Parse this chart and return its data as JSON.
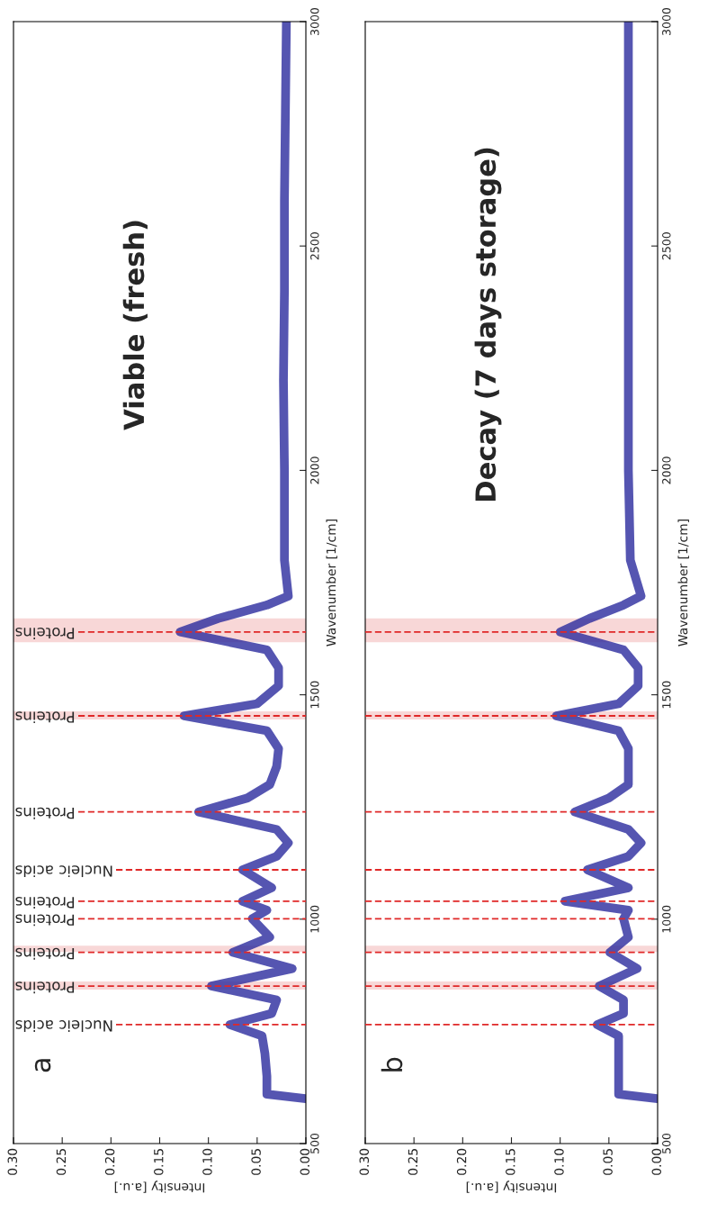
{
  "chart_data": [
    {
      "type": "line",
      "title": "Viable (fresh)",
      "annotations": [
        "a"
      ],
      "xlabel": "Intensity [a.u.]",
      "ylabel": "Wavenumber [1/cm]",
      "xlim": [
        0.3,
        0
      ],
      "xticks": [
        {
          "value": 0.3,
          "label": "0.30"
        },
        {
          "value": 0.25,
          "label": "0.25"
        },
        {
          "value": 0.2,
          "label": "0.20"
        },
        {
          "value": 0.15,
          "label": "0.15"
        },
        {
          "value": 0.1,
          "label": "0.10"
        },
        {
          "value": 0.05,
          "label": "0.05"
        },
        {
          "value": 0,
          "label": "0.00"
        }
      ],
      "ylim": [
        500,
        3000
      ],
      "yticks": [
        500,
        1000,
        1500,
        2000,
        2500,
        3000
      ],
      "series": [
        {
          "color": "#2a2a9e",
          "x": [
            0,
            0.04,
            0.04,
            0.042,
            0.045,
            0.078,
            0.035,
            0.03,
            0.097,
            0.014,
            0.075,
            0.037,
            0.055,
            0.04,
            0.065,
            0.035,
            0.065,
            0.03,
            0.018,
            0.03,
            0.11,
            0.06,
            0.037,
            0.03,
            0.028,
            0.04,
            0.125,
            0.05,
            0.028,
            0.028,
            0.04,
            0.129,
            0.09,
            0.04,
            0.018,
            0.022,
            0.022,
            0.023,
            0.022,
            0.022,
            0.021,
            0.02
          ],
          "values": [
            600,
            610,
            650,
            700,
            740,
            765,
            790,
            820,
            851,
            890,
            926,
            960,
            1001,
            1020,
            1040,
            1070,
            1110,
            1140,
            1170,
            1200,
            1239,
            1270,
            1300,
            1340,
            1380,
            1420,
            1453,
            1480,
            1520,
            1560,
            1600,
            1640,
            1670,
            1700,
            1720,
            1800,
            2000,
            2200,
            2400,
            2600,
            2800,
            3000
          ]
        }
      ],
      "ref_lines": [
        {
          "axis": "y",
          "value": 765,
          "label": "Nucleic acids",
          "color": "#e02828",
          "line_style": "dashed"
        },
        {
          "axis": "y",
          "value": 851,
          "label": "Proteins",
          "color": "#e02828",
          "line_style": "dashed"
        },
        {
          "axis": "y",
          "value": 926,
          "label": "Proteins",
          "color": "#e02828",
          "line_style": "dashed"
        },
        {
          "axis": "y",
          "value": 1001,
          "label": "Proteins",
          "color": "#e02828",
          "line_style": "dashed"
        },
        {
          "axis": "y",
          "value": 1040,
          "label": "Proteins",
          "color": "#e02828",
          "line_style": "dashed"
        },
        {
          "axis": "y",
          "value": 1110,
          "label": "Nucleic acids",
          "color": "#e02828",
          "line_style": "dashed"
        },
        {
          "axis": "y",
          "value": 1239,
          "label": "Proteins",
          "color": "#e02828",
          "line_style": "dashed"
        },
        {
          "axis": "y",
          "value": 1453,
          "label": "Proteins",
          "color": "#e02828",
          "line_style": "dashed"
        },
        {
          "axis": "y",
          "value": 1640,
          "label": "Proteins",
          "color": "#e02828",
          "line_style": "dashed"
        }
      ],
      "bands": [
        {
          "axis": "y",
          "from": 843,
          "to": 861,
          "color": "#f5c6c6"
        },
        {
          "axis": "y",
          "from": 927,
          "to": 941,
          "color": "#f5c6c6"
        },
        {
          "axis": "y",
          "from": 1445,
          "to": 1463,
          "color": "#f5c6c6"
        },
        {
          "axis": "y",
          "from": 1617,
          "to": 1670,
          "color": "#f5c6c6"
        }
      ]
    },
    {
      "type": "line",
      "title": "Decay (7 days storage)",
      "annotations": [
        "b"
      ],
      "xlabel": "Intensity [a.u.]",
      "ylabel": "Wavenumber [1/cm]",
      "xlim": [
        0.3,
        0
      ],
      "xticks": [
        {
          "value": 0.3,
          "label": "0.30"
        },
        {
          "value": 0.25,
          "label": "0.25"
        },
        {
          "value": 0.2,
          "label": "0.20"
        },
        {
          "value": 0.15,
          "label": "0.15"
        },
        {
          "value": 0.1,
          "label": "0.10"
        },
        {
          "value": 0.05,
          "label": "0.05"
        },
        {
          "value": 0,
          "label": "0.00"
        }
      ],
      "ylim": [
        500,
        3000
      ],
      "yticks": [
        500,
        1000,
        1500,
        2000,
        2500,
        3000
      ],
      "series": [
        {
          "color": "#2a2a9e",
          "x": [
            0,
            0.04,
            0.04,
            0.04,
            0.04,
            0.062,
            0.035,
            0.035,
            0.06,
            0.021,
            0.049,
            0.03,
            0.035,
            0.03,
            0.095,
            0.03,
            0.072,
            0.03,
            0.017,
            0.03,
            0.085,
            0.05,
            0.03,
            0.03,
            0.03,
            0.04,
            0.104,
            0.04,
            0.02,
            0.02,
            0.035,
            0.1,
            0.07,
            0.035,
            0.017,
            0.028,
            0.03,
            0.03,
            0.03,
            0.03,
            0.03,
            0.03
          ],
          "values": [
            600,
            610,
            650,
            700,
            740,
            765,
            790,
            820,
            851,
            890,
            926,
            960,
            1001,
            1020,
            1040,
            1070,
            1110,
            1140,
            1170,
            1200,
            1239,
            1270,
            1300,
            1340,
            1380,
            1420,
            1453,
            1480,
            1520,
            1560,
            1600,
            1640,
            1670,
            1700,
            1720,
            1800,
            2000,
            2200,
            2400,
            2600,
            2800,
            3000
          ]
        }
      ],
      "ref_lines": [
        {
          "axis": "y",
          "value": 765,
          "color": "#e02828",
          "line_style": "dashed"
        },
        {
          "axis": "y",
          "value": 851,
          "color": "#e02828",
          "line_style": "dashed"
        },
        {
          "axis": "y",
          "value": 926,
          "color": "#e02828",
          "line_style": "dashed"
        },
        {
          "axis": "y",
          "value": 1001,
          "color": "#e02828",
          "line_style": "dashed"
        },
        {
          "axis": "y",
          "value": 1040,
          "color": "#e02828",
          "line_style": "dashed"
        },
        {
          "axis": "y",
          "value": 1110,
          "color": "#e02828",
          "line_style": "dashed"
        },
        {
          "axis": "y",
          "value": 1239,
          "color": "#e02828",
          "line_style": "dashed"
        },
        {
          "axis": "y",
          "value": 1453,
          "color": "#e02828",
          "line_style": "dashed"
        },
        {
          "axis": "y",
          "value": 1640,
          "color": "#e02828",
          "line_style": "dashed"
        }
      ],
      "bands": [
        {
          "axis": "y",
          "from": 843,
          "to": 861,
          "color": "#f5c6c6"
        },
        {
          "axis": "y",
          "from": 927,
          "to": 941,
          "color": "#f5c6c6"
        },
        {
          "axis": "y",
          "from": 1445,
          "to": 1463,
          "color": "#f5c6c6"
        },
        {
          "axis": "y",
          "from": 1617,
          "to": 1670,
          "color": "#f5c6c6"
        }
      ]
    }
  ]
}
